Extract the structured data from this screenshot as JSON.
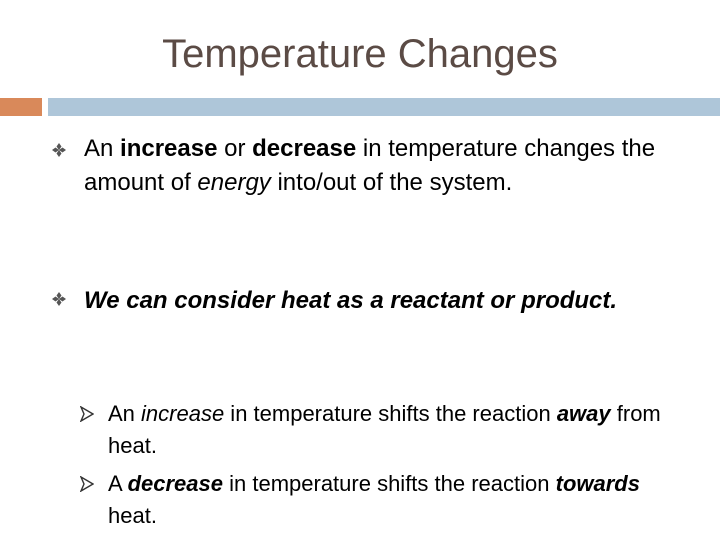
{
  "header": {
    "title": "Temperature Changes"
  },
  "bullets": [
    {
      "runs": [
        "An ",
        "increase",
        " or ",
        "decrease",
        " in temperature changes the amount of ",
        "energy",
        " into/out of the system."
      ]
    },
    {
      "runs": [
        "We can consider heat as a reactant or product."
      ]
    }
  ],
  "sub_bullets": [
    {
      "runs": [
        "An ",
        "increase",
        " in temperature shifts the reaction ",
        "away",
        " from heat."
      ]
    },
    {
      "runs": [
        "A ",
        "decrease",
        " in temperature shifts the reaction ",
        "towards",
        " heat."
      ]
    }
  ]
}
